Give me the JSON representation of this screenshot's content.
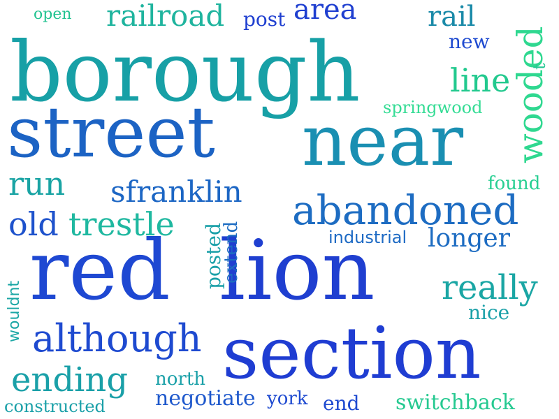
{
  "words": {
    "borough": "borough",
    "street": "street",
    "near": "near",
    "red": "red",
    "lion": "lion",
    "section": "section",
    "abandoned": "abandoned",
    "although": "although",
    "sfranklin": "sfranklin",
    "ending": "ending",
    "wooded": "wooded",
    "really": "really",
    "run": "run",
    "old": "old",
    "trestle": "trestle",
    "railroad": "railroad",
    "area": "area",
    "rail": "rail",
    "line": "line",
    "longer": "longer",
    "springwood": "springwood",
    "post": "post",
    "new": "new",
    "open": "open",
    "t": "t",
    "found": "found",
    "industrial": "industrial",
    "posted": "posted",
    "extend": "extend",
    "wouldnt": "wouldnt",
    "nice": "nice",
    "north": "north",
    "negotiate": "negotiate",
    "york": "york",
    "end": "end",
    "switchback": "switchback",
    "constructed": "constructed"
  },
  "colors": {
    "teal": "#1a9aa5",
    "mid_blue": "#1c63c4",
    "royal_blue": "#1f3fd0",
    "green": "#2fd890",
    "aqua_green": "#1fb8a0"
  }
}
